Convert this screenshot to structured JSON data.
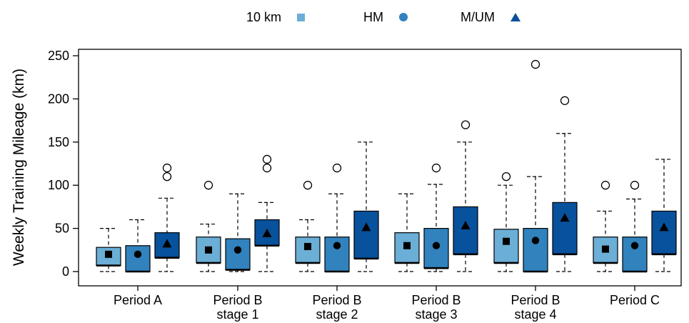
{
  "legend": {
    "items": [
      {
        "label": "10 km",
        "marker": "square-marker-icon",
        "color": "#6baed6"
      },
      {
        "label": "HM",
        "marker": "circle-marker-icon",
        "color": "#3182bd"
      },
      {
        "label": "M/UM",
        "marker": "triangle-marker-icon",
        "color": "#08519c"
      }
    ]
  },
  "chart_data": {
    "type": "boxplot",
    "title": "",
    "ylabel": "Weekly Training Mileage (km)",
    "xlabel": "",
    "ylim": [
      -15,
      258
    ],
    "yticks": [
      0,
      50,
      100,
      150,
      200,
      250
    ],
    "grid": false,
    "legend_position": "top",
    "categories": [
      [
        "Period A"
      ],
      [
        "Period B",
        "stage 1"
      ],
      [
        "Period B",
        "stage 2"
      ],
      [
        "Period B",
        "stage 3"
      ],
      [
        "Period B",
        "stage 4"
      ],
      [
        "Period C"
      ]
    ],
    "series": [
      {
        "name": "10 km",
        "marker": "square",
        "color": "#6baed6",
        "boxes": [
          {
            "whisker_low": 0,
            "q1": 7,
            "median": 7,
            "q3": 28,
            "whisker_high": 50,
            "mean": 20,
            "outliers": []
          },
          {
            "whisker_low": 0,
            "q1": 10,
            "median": 10,
            "q3": 40,
            "whisker_high": 55,
            "mean": 25,
            "outliers": [
              100
            ]
          },
          {
            "whisker_low": 0,
            "q1": 10,
            "median": 10,
            "q3": 40,
            "whisker_high": 60,
            "mean": 29,
            "outliers": [
              100
            ]
          },
          {
            "whisker_low": 0,
            "q1": 10,
            "median": 10,
            "q3": 45,
            "whisker_high": 90,
            "mean": 30,
            "outliers": []
          },
          {
            "whisker_low": 0,
            "q1": 10,
            "median": 10,
            "q3": 49,
            "whisker_high": 100,
            "mean": 35,
            "outliers": [
              110
            ]
          },
          {
            "whisker_low": 0,
            "q1": 10,
            "median": 10,
            "q3": 40,
            "whisker_high": 70,
            "mean": 26,
            "outliers": [
              100
            ]
          }
        ]
      },
      {
        "name": "HM",
        "marker": "circle",
        "color": "#3182bd",
        "boxes": [
          {
            "whisker_low": 0,
            "q1": 0,
            "median": 0,
            "q3": 30,
            "whisker_high": 60,
            "mean": 20,
            "outliers": []
          },
          {
            "whisker_low": 0,
            "q1": 2,
            "median": 2,
            "q3": 38,
            "whisker_high": 90,
            "mean": 25,
            "outliers": []
          },
          {
            "whisker_low": 0,
            "q1": 0,
            "median": 0,
            "q3": 40,
            "whisker_high": 90,
            "mean": 30,
            "outliers": [
              120
            ]
          },
          {
            "whisker_low": 0,
            "q1": 4,
            "median": 4,
            "q3": 50,
            "whisker_high": 101,
            "mean": 30,
            "outliers": [
              120
            ]
          },
          {
            "whisker_low": 0,
            "q1": 0,
            "median": 0,
            "q3": 50,
            "whisker_high": 110,
            "mean": 36,
            "outliers": [
              240
            ]
          },
          {
            "whisker_low": 0,
            "q1": 0,
            "median": 0,
            "q3": 40,
            "whisker_high": 84,
            "mean": 30,
            "outliers": [
              100
            ]
          }
        ]
      },
      {
        "name": "M/UM",
        "marker": "triangle",
        "color": "#08519c",
        "boxes": [
          {
            "whisker_low": 0,
            "q1": 16,
            "median": 16,
            "q3": 45,
            "whisker_high": 85,
            "mean": 32,
            "outliers": [
              110,
              120
            ]
          },
          {
            "whisker_low": 0,
            "q1": 30,
            "median": 30,
            "q3": 60,
            "whisker_high": 80,
            "mean": 44,
            "outliers": [
              120,
              130
            ]
          },
          {
            "whisker_low": 0,
            "q1": 15,
            "median": 15,
            "q3": 70,
            "whisker_high": 150,
            "mean": 51,
            "outliers": []
          },
          {
            "whisker_low": 0,
            "q1": 20,
            "median": 20,
            "q3": 75,
            "whisker_high": 150,
            "mean": 53,
            "outliers": [
              170
            ]
          },
          {
            "whisker_low": 0,
            "q1": 20,
            "median": 20,
            "q3": 80,
            "whisker_high": 160,
            "mean": 62,
            "outliers": [
              198
            ]
          },
          {
            "whisker_low": 0,
            "q1": 20,
            "median": 20,
            "q3": 70,
            "whisker_high": 130,
            "mean": 51,
            "outliers": []
          }
        ]
      }
    ]
  }
}
